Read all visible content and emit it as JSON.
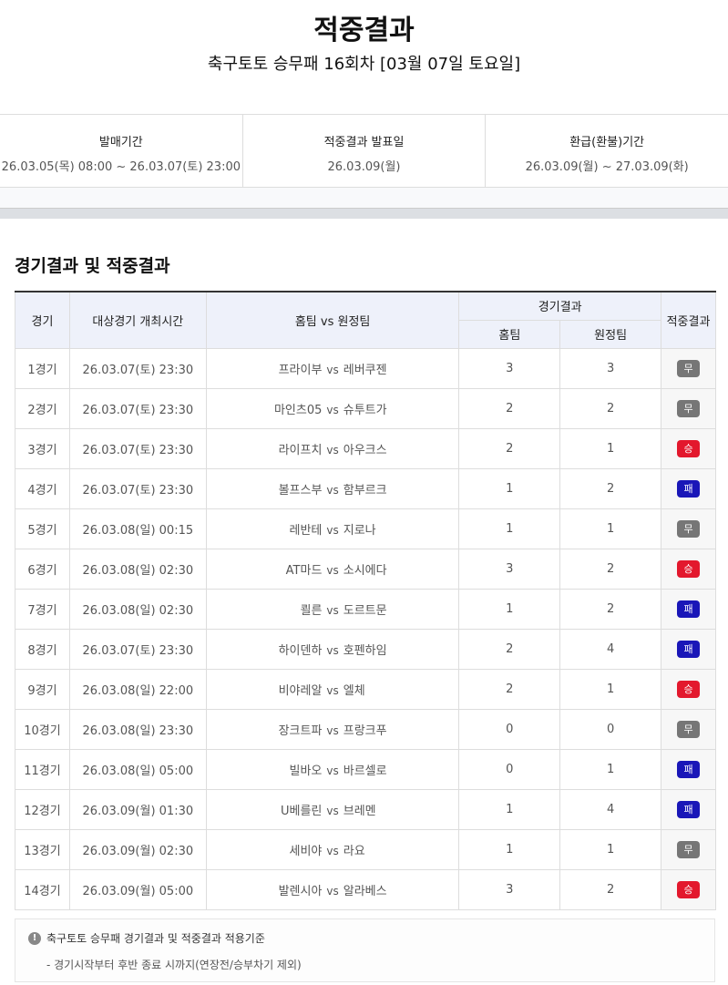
{
  "header": {
    "title": "적중결과",
    "subtitle": "축구토토 승무패 16회차 [03월 07일 토요일]"
  },
  "info": [
    {
      "label": "발매기간",
      "value": "26.03.05(목) 08:00 ~ 26.03.07(토) 23:00"
    },
    {
      "label": "적중결과 발표일",
      "value": "26.03.09(월)"
    },
    {
      "label": "환급(환불)기간",
      "value": "26.03.09(월) ~ 27.03.09(화)"
    }
  ],
  "section_title": "경기결과 및 적중결과",
  "table": {
    "headers": {
      "game": "경기",
      "time": "대상경기 개최시간",
      "teams": "홈팀 vs 원정팀",
      "result": "경기결과",
      "home": "홈팀",
      "away": "원정팀",
      "hit": "적중결과"
    },
    "vs": "vs",
    "rows": [
      {
        "game": "1경기",
        "time": "26.03.07(토) 23:30",
        "home": "프라이부",
        "away": "레버쿠젠",
        "hs": "3",
        "as": "3",
        "hit": "무"
      },
      {
        "game": "2경기",
        "time": "26.03.07(토) 23:30",
        "home": "마인츠05",
        "away": "슈투트가",
        "hs": "2",
        "as": "2",
        "hit": "무"
      },
      {
        "game": "3경기",
        "time": "26.03.07(토) 23:30",
        "home": "라이프치",
        "away": "아우크스",
        "hs": "2",
        "as": "1",
        "hit": "승"
      },
      {
        "game": "4경기",
        "time": "26.03.07(토) 23:30",
        "home": "볼프스부",
        "away": "함부르크",
        "hs": "1",
        "as": "2",
        "hit": "패"
      },
      {
        "game": "5경기",
        "time": "26.03.08(일) 00:15",
        "home": "레반테",
        "away": "지로나",
        "hs": "1",
        "as": "1",
        "hit": "무"
      },
      {
        "game": "6경기",
        "time": "26.03.08(일) 02:30",
        "home": "AT마드",
        "away": "소시에다",
        "hs": "3",
        "as": "2",
        "hit": "승"
      },
      {
        "game": "7경기",
        "time": "26.03.08(일) 02:30",
        "home": "쾰른",
        "away": "도르트문",
        "hs": "1",
        "as": "2",
        "hit": "패"
      },
      {
        "game": "8경기",
        "time": "26.03.07(토) 23:30",
        "home": "하이덴하",
        "away": "호펜하임",
        "hs": "2",
        "as": "4",
        "hit": "패"
      },
      {
        "game": "9경기",
        "time": "26.03.08(일) 22:00",
        "home": "비야레알",
        "away": "엘체",
        "hs": "2",
        "as": "1",
        "hit": "승"
      },
      {
        "game": "10경기",
        "time": "26.03.08(일) 23:30",
        "home": "장크트파",
        "away": "프랑크푸",
        "hs": "0",
        "as": "0",
        "hit": "무"
      },
      {
        "game": "11경기",
        "time": "26.03.08(일) 05:00",
        "home": "빌바오",
        "away": "바르셀로",
        "hs": "0",
        "as": "1",
        "hit": "패"
      },
      {
        "game": "12경기",
        "time": "26.03.09(월) 01:30",
        "home": "U베를린",
        "away": "브레멘",
        "hs": "1",
        "as": "4",
        "hit": "패"
      },
      {
        "game": "13경기",
        "time": "26.03.09(월) 02:30",
        "home": "세비야",
        "away": "라요",
        "hs": "1",
        "as": "1",
        "hit": "무"
      },
      {
        "game": "14경기",
        "time": "26.03.09(월) 05:00",
        "home": "발렌시아",
        "away": "알라베스",
        "hs": "3",
        "as": "2",
        "hit": "승"
      }
    ]
  },
  "badge_colors": {
    "승": "#e3182d",
    "무": "#767676",
    "패": "#1a17b8"
  },
  "notice": {
    "icon": "exclamation-circle-icon",
    "title": "축구토토 승무패 경기결과 및 적중결과 적용기준",
    "item": "- 경기시작부터 후반 종료 시까지(연장전/승부차기 제외)"
  }
}
